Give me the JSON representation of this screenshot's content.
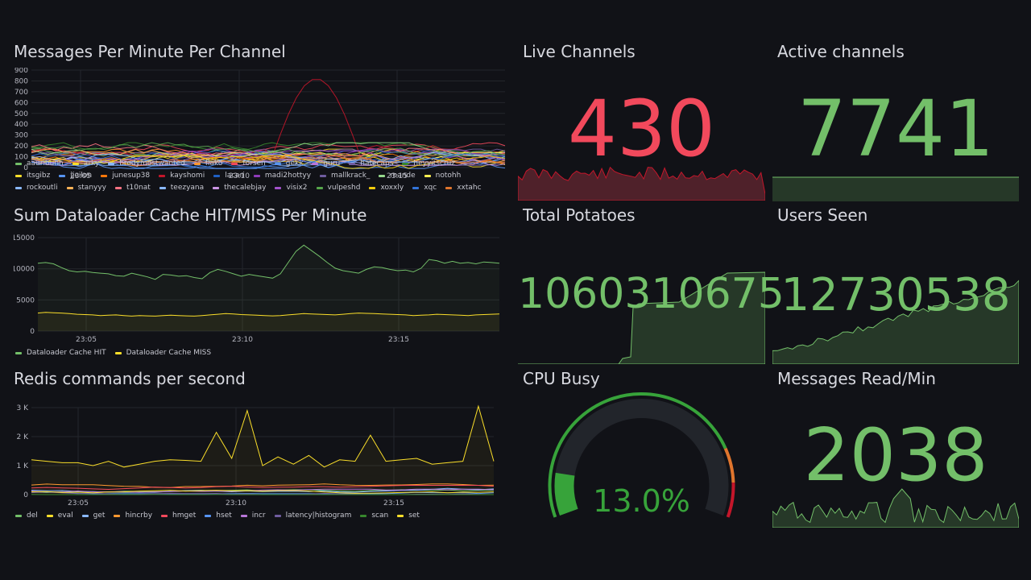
{
  "panels": {
    "messages_per_minute": {
      "title": "Messages Per Minute Per Channel",
      "y_ticks": [
        "900",
        "800",
        "700",
        "600",
        "500",
        "400",
        "300",
        "200",
        "100",
        "0"
      ],
      "x_ticks": [
        "23:05",
        "23:10",
        "23:15"
      ],
      "legend": [
        {
          "name": "aauribunn",
          "color": "#73bf69"
        },
        {
          "name": "arky",
          "color": "#fade2a"
        },
        {
          "name": "brodymostwanted",
          "color": "#8ab8ff"
        },
        {
          "name": "flako",
          "color": "#ff9830"
        },
        {
          "name": "forsen",
          "color": "#f2495c"
        },
        {
          "name": "gekk",
          "color": "#5794f2"
        },
        {
          "name": "guru",
          "color": "#b877d9"
        },
        {
          "name": "hatecaps",
          "color": "#705da0"
        },
        {
          "name": "heyyitscruz",
          "color": "#37872d"
        },
        {
          "name": "itsgibz",
          "color": "#fade2a"
        },
        {
          "name": "jjeilon",
          "color": "#5794f2"
        },
        {
          "name": "junesup38",
          "color": "#ff780a"
        },
        {
          "name": "kayshomi",
          "color": "#c4162a"
        },
        {
          "name": "lacari",
          "color": "#1f60c4"
        },
        {
          "name": "madi2hottyy",
          "color": "#8f3bb8"
        },
        {
          "name": "mallkrack_",
          "color": "#705da0"
        },
        {
          "name": "mande",
          "color": "#96d98d"
        },
        {
          "name": "notohh",
          "color": "#ffee52"
        },
        {
          "name": "rockoutli",
          "color": "#8ab8ff"
        },
        {
          "name": "stanyyy",
          "color": "#ffb357"
        },
        {
          "name": "t10nat",
          "color": "#ff7383"
        },
        {
          "name": "teezyana",
          "color": "#8ab8ff"
        },
        {
          "name": "thecalebjay",
          "color": "#ca95e5"
        },
        {
          "name": "visix2",
          "color": "#a352cc"
        },
        {
          "name": "vulpeshd",
          "color": "#56a64b"
        },
        {
          "name": "xoxxly",
          "color": "#f2cc0c"
        },
        {
          "name": "xqc",
          "color": "#3274d9"
        },
        {
          "name": "xxtahc",
          "color": "#e0752d"
        }
      ]
    },
    "dataloader": {
      "title": "Sum Dataloader Cache HIT/MISS Per Minute",
      "y_ticks": [
        "15000",
        "10000",
        "5000",
        "0"
      ],
      "x_ticks": [
        "23:05",
        "23:10",
        "23:15"
      ],
      "legend": [
        {
          "name": "Dataloader Cache HIT",
          "color": "#73bf69"
        },
        {
          "name": "Dataloader Cache MISS",
          "color": "#fade2a"
        }
      ]
    },
    "redis": {
      "title": "Redis commands per second",
      "y_ticks": [
        "3 K",
        "2 K",
        "1 K",
        "0"
      ],
      "x_ticks": [
        "23:05",
        "23:10",
        "23:15"
      ],
      "legend": [
        {
          "name": "del",
          "color": "#73bf69"
        },
        {
          "name": "eval",
          "color": "#fade2a"
        },
        {
          "name": "get",
          "color": "#8ab8ff"
        },
        {
          "name": "hincrby",
          "color": "#ff9830"
        },
        {
          "name": "hmget",
          "color": "#f2495c"
        },
        {
          "name": "hset",
          "color": "#5794f2"
        },
        {
          "name": "incr",
          "color": "#b877d9"
        },
        {
          "name": "latency|histogram",
          "color": "#705da0"
        },
        {
          "name": "scan",
          "color": "#37872d"
        },
        {
          "name": "set",
          "color": "#fade2a"
        }
      ]
    },
    "live_channels": {
      "title": "Live Channels",
      "value": "430",
      "color": "#f2495c"
    },
    "active_channels": {
      "title": "Active channels",
      "value": "7741",
      "color": "#73bf69"
    },
    "total_potatoes": {
      "title": "Total Potatoes",
      "value": "1060310675",
      "color": "#73bf69"
    },
    "users_seen": {
      "title": "Users Seen",
      "value": "12730538",
      "color": "#73bf69"
    },
    "cpu_busy": {
      "title": "CPU Busy",
      "value": "13.0%",
      "percent": 13.0,
      "color": "#37a33a"
    },
    "messages_read": {
      "title": "Messages Read/Min",
      "value": "2038",
      "color": "#73bf69"
    }
  }
}
